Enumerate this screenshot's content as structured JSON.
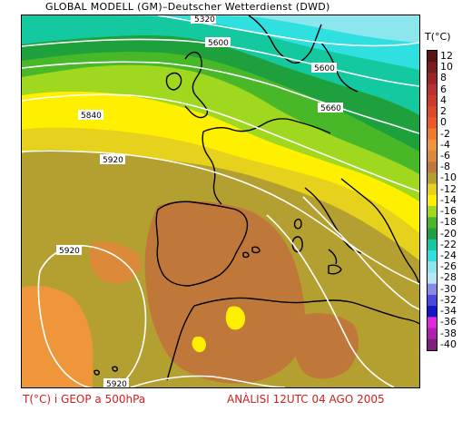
{
  "header": {
    "title": "GLOBAL MODELL (GM)–Deutscher Wetterdienst (DWD)"
  },
  "legend": {
    "unit_label": "T(°C)",
    "ticks": [
      "12",
      "10",
      "8",
      "6",
      "4",
      "2",
      "0",
      "-2",
      "-4",
      "-6",
      "-8",
      "-10",
      "-12",
      "-14",
      "-16",
      "-18",
      "-20",
      "-22",
      "-24",
      "-26",
      "-28",
      "-30",
      "-32",
      "-34",
      "-36",
      "-38",
      "-40"
    ],
    "colors": [
      "#5a1414",
      "#7a1e1e",
      "#9c2626",
      "#b83030",
      "#cc3c2c",
      "#dd4a28",
      "#ec5a28",
      "#f27a2c",
      "#f0963a",
      "#dc8a3a",
      "#c0783a",
      "#b4a030",
      "#e6d21c",
      "#fff000",
      "#a0d820",
      "#48b828",
      "#1ea03c",
      "#14c8a0",
      "#30e0e0",
      "#8ce6ee",
      "#b4e8f4",
      "#8a8ae8",
      "#4848e0",
      "#1414c8",
      "#e026e0",
      "#b020b0",
      "#801e80"
    ]
  },
  "map": {
    "contour_labels": [
      "5320",
      "5600",
      "5600",
      "5660",
      "5840",
      "5920",
      "5920",
      "5920"
    ]
  },
  "footer": {
    "left_caption": "T(°C) i GEOP a 500hPa",
    "right_caption": "ANÀLISI 12UTC 04 AGO 2005"
  }
}
